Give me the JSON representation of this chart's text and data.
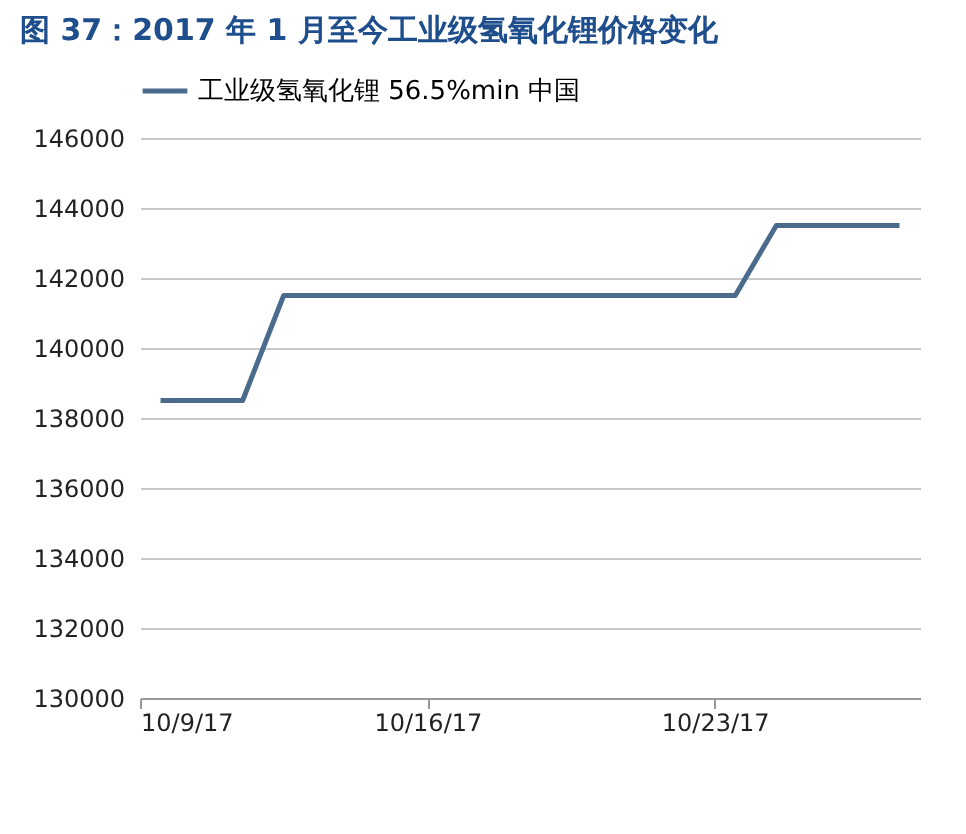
{
  "chart_data": {
    "type": "line",
    "title": "图 37：2017 年 1 月至今工业级氢氧化锂价格变化",
    "x": [
      "2017-10-09T12:00",
      "2017-10-10T12:00",
      "2017-10-11T12:00",
      "2017-10-12T12:00",
      "2017-10-13T12:00",
      "2017-10-14T12:00",
      "2017-10-15T12:00",
      "2017-10-16T12:00",
      "2017-10-17T12:00",
      "2017-10-18T12:00",
      "2017-10-19T12:00",
      "2017-10-20T12:00",
      "2017-10-21T12:00",
      "2017-10-22T12:00",
      "2017-10-23T12:00",
      "2017-10-24T12:00",
      "2017-10-25T12:00",
      "2017-10-26T12:00",
      "2017-10-27T12:00"
    ],
    "series": [
      {
        "name": "工业级氢氧化锂 56.5%min 中国",
        "color": "#4a6b8c",
        "values": [
          138500,
          138500,
          138500,
          141500,
          141500,
          141500,
          141500,
          141500,
          141500,
          141500,
          141500,
          141500,
          141500,
          141500,
          141500,
          143500,
          143500,
          143500,
          143500
        ]
      }
    ],
    "xlim": [
      "2017-10-09",
      "2017-10-28"
    ],
    "xticks": [
      {
        "value": "2017-10-09",
        "label": "10/9/17"
      },
      {
        "value": "2017-10-16",
        "label": "10/16/17"
      },
      {
        "value": "2017-10-23",
        "label": "10/23/17"
      }
    ],
    "ylim": [
      130000,
      146000
    ],
    "yticks": [
      130000,
      132000,
      134000,
      136000,
      138000,
      140000,
      142000,
      144000,
      146000
    ],
    "grid": "y",
    "legend": "top",
    "marker": "none",
    "line_style": "solid"
  }
}
